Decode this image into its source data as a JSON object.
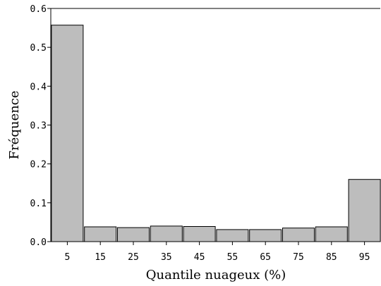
{
  "chart_data": {
    "type": "bar",
    "categories": [
      "5",
      "15",
      "25",
      "35",
      "45",
      "55",
      "65",
      "75",
      "85",
      "95"
    ],
    "values": [
      0.557,
      0.038,
      0.036,
      0.04,
      0.039,
      0.031,
      0.031,
      0.035,
      0.038,
      0.16
    ],
    "xlabel": "Quantile nuageux (%)",
    "ylabel": "Fréquence",
    "ylim": [
      0,
      0.6
    ],
    "yticks": [
      "0.0",
      "0.1",
      "0.2",
      "0.3",
      "0.4",
      "0.5",
      "0.6"
    ],
    "grid": false,
    "bar_color": "#bdbdbd",
    "edge_color": "#000000"
  }
}
